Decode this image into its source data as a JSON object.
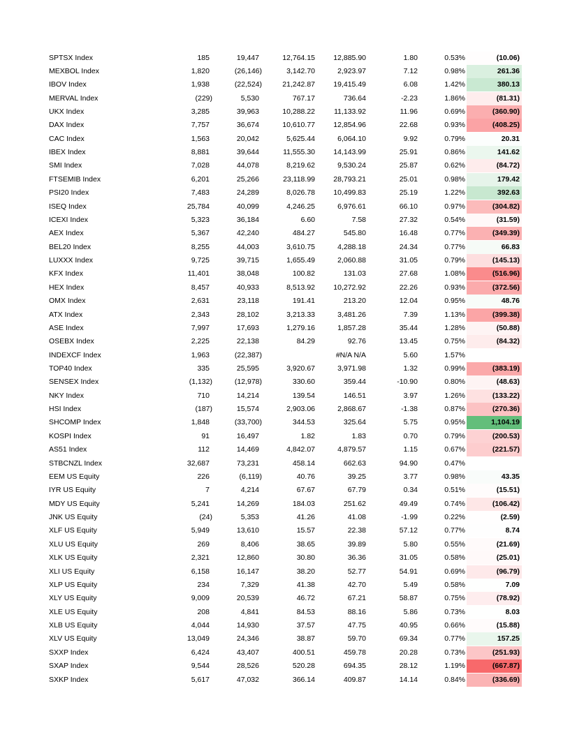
{
  "table": {
    "rows": [
      [
        "SPTSX Index",
        "185",
        "19,447",
        "12,764.15",
        "12,885.90",
        "1.80",
        "0.53%",
        "(10.06)"
      ],
      [
        "MEXBOL Index",
        "1,820",
        "(26,146)",
        "3,142.70",
        "2,923.97",
        "7.12",
        "0.98%",
        "261.36"
      ],
      [
        "IBOV Index",
        "1,938",
        "(22,524)",
        "21,242.87",
        "19,415.49",
        "6.08",
        "1.42%",
        "380.13"
      ],
      [
        "MERVAL Index",
        "(229)",
        "5,530",
        "767.17",
        "736.64",
        "-2.23",
        "1.86%",
        "(81.31)"
      ],
      [
        "UKX Index",
        "3,285",
        "39,963",
        "10,288.22",
        "11,133.92",
        "11.96",
        "0.69%",
        "(360.90)"
      ],
      [
        "DAX Index",
        "7,757",
        "36,674",
        "10,610.77",
        "12,854.96",
        "22.68",
        "0.93%",
        "(408.25)"
      ],
      [
        "CAC Index",
        "1,563",
        "20,042",
        "5,625.44",
        "6,064.10",
        "9.92",
        "0.79%",
        "20.31"
      ],
      [
        "IBEX Index",
        "8,881",
        "39,644",
        "11,555.30",
        "14,143.99",
        "25.91",
        "0.86%",
        "141.62"
      ],
      [
        "SMI Index",
        "7,028",
        "44,078",
        "8,219.62",
        "9,530.24",
        "25.87",
        "0.62%",
        "(84.72)"
      ],
      [
        "FTSEMIB Index",
        "6,201",
        "25,266",
        "23,118.99",
        "28,793.21",
        "25.01",
        "0.98%",
        "179.42"
      ],
      [
        "PSI20 Index",
        "7,483",
        "24,289",
        "8,026.78",
        "10,499.83",
        "25.19",
        "1.22%",
        "392.63"
      ],
      [
        "ISEQ Index",
        "25,784",
        "40,099",
        "4,246.25",
        "6,976.61",
        "66.10",
        "0.97%",
        "(304.82)"
      ],
      [
        "ICEXI Index",
        "5,323",
        "36,184",
        "6.60",
        "7.58",
        "27.32",
        "0.54%",
        "(31.59)"
      ],
      [
        "AEX Index",
        "5,367",
        "42,240",
        "484.27",
        "545.80",
        "16.48",
        "0.77%",
        "(349.39)"
      ],
      [
        "BEL20 Index",
        "8,255",
        "44,003",
        "3,610.75",
        "4,288.18",
        "24.34",
        "0.77%",
        "66.83"
      ],
      [
        "LUXXX Index",
        "9,725",
        "39,715",
        "1,655.49",
        "2,060.88",
        "31.05",
        "0.79%",
        "(145.13)"
      ],
      [
        "KFX Index",
        "11,401",
        "38,048",
        "100.82",
        "131.03",
        "27.68",
        "1.08%",
        "(516.96)"
      ],
      [
        "HEX Index",
        "8,457",
        "40,933",
        "8,513.92",
        "10,272.92",
        "22.26",
        "0.93%",
        "(372.56)"
      ],
      [
        "OMX Index",
        "2,631",
        "23,118",
        "191.41",
        "213.20",
        "12.04",
        "0.95%",
        "48.76"
      ],
      [
        "ATX Index",
        "2,343",
        "28,102",
        "3,213.33",
        "3,481.26",
        "7.39",
        "1.13%",
        "(399.38)"
      ],
      [
        "ASE Index",
        "7,997",
        "17,693",
        "1,279.16",
        "1,857.28",
        "35.44",
        "1.28%",
        "(50.88)"
      ],
      [
        "OSEBX Index",
        "2,225",
        "22,138",
        "84.29",
        "92.76",
        "13.45",
        "0.75%",
        "(84.32)"
      ],
      [
        "INDEXCF Index",
        "1,963",
        "(22,387)",
        null,
        "#N/A N/A",
        "5.60",
        "1.57%",
        null
      ],
      [
        "TOP40 Index",
        "335",
        "25,595",
        "3,920.67",
        "3,971.98",
        "1.32",
        "0.99%",
        "(383.19)"
      ],
      [
        "SENSEX Index",
        "(1,132)",
        "(12,978)",
        "330.60",
        "359.44",
        "-10.90",
        "0.80%",
        "(48.63)"
      ],
      [
        "NKY Index",
        "710",
        "14,214",
        "139.54",
        "146.51",
        "3.97",
        "1.26%",
        "(133.22)"
      ],
      [
        "HSI Index",
        "(187)",
        "15,574",
        "2,903.06",
        "2,868.67",
        "-1.38",
        "0.87%",
        "(270.36)"
      ],
      [
        "SHCOMP Index",
        "1,848",
        "(33,700)",
        "344.53",
        "325.64",
        "5.75",
        "0.95%",
        "1,104.19"
      ],
      [
        "KOSPI Index",
        "91",
        "16,497",
        "1.82",
        "1.83",
        "0.70",
        "0.79%",
        "(200.53)"
      ],
      [
        "AS51 Index",
        "112",
        "14,469",
        "4,842.07",
        "4,879.57",
        "1.15",
        "0.67%",
        "(221.57)"
      ],
      [
        "STBCNZL Index",
        "32,687",
        "73,231",
        "458.14",
        "662.63",
        "94.90",
        "0.47%",
        null
      ],
      [
        "EEM US Equity",
        "226",
        "(6,119)",
        "40.76",
        "39.25",
        "3.77",
        "0.98%",
        "43.35"
      ],
      [
        "IYR US Equity",
        "7",
        "4,214",
        "67.67",
        "67.79",
        "0.34",
        "0.51%",
        "(15.51)"
      ],
      [
        "MDY US Equity",
        "5,241",
        "14,269",
        "184.03",
        "251.62",
        "49.49",
        "0.74%",
        "(106.42)"
      ],
      [
        "JNK US Equity",
        "(24)",
        "5,353",
        "41.26",
        "41.08",
        "-1.99",
        "0.22%",
        "(2.59)"
      ],
      [
        "XLF US Equity",
        "5,949",
        "13,610",
        "15.57",
        "22.38",
        "57.12",
        "0.77%",
        "8.74"
      ],
      [
        "XLU US Equity",
        "269",
        "8,406",
        "38.65",
        "39.89",
        "5.80",
        "0.55%",
        "(21.69)"
      ],
      [
        "XLK US Equity",
        "2,321",
        "12,860",
        "30.80",
        "36.36",
        "31.05",
        "0.58%",
        "(25.01)"
      ],
      [
        "XLI US Equity",
        "6,158",
        "16,147",
        "38.20",
        "52.77",
        "54.91",
        "0.69%",
        "(96.79)"
      ],
      [
        "XLP US Equity",
        "234",
        "7,329",
        "41.38",
        "42.70",
        "5.49",
        "0.58%",
        "7.09"
      ],
      [
        "XLY US Equity",
        "9,009",
        "20,539",
        "46.72",
        "67.21",
        "58.87",
        "0.75%",
        "(78.92)"
      ],
      [
        "XLE US Equity",
        "208",
        "4,841",
        "84.53",
        "88.16",
        "5.86",
        "0.73%",
        "8.03"
      ],
      [
        "XLB US Equity",
        "4,044",
        "14,930",
        "37.57",
        "47.75",
        "40.95",
        "0.66%",
        "(15.88)"
      ],
      [
        "XLV US Equity",
        "13,049",
        "24,346",
        "38.87",
        "59.70",
        "69.34",
        "0.77%",
        "157.25"
      ],
      [
        "SXXP Index",
        "6,424",
        "43,407",
        "400.51",
        "459.78",
        "20.28",
        "0.73%",
        "(251.93)"
      ],
      [
        "SXAP Index",
        "9,544",
        "28,526",
        "520.28",
        "694.35",
        "28.12",
        "1.19%",
        "(667.87)"
      ],
      [
        "SXKP Index",
        "5,617",
        "47,032",
        "366.14",
        "409.87",
        "14.14",
        "0.84%",
        "(336.69)"
      ]
    ]
  }
}
